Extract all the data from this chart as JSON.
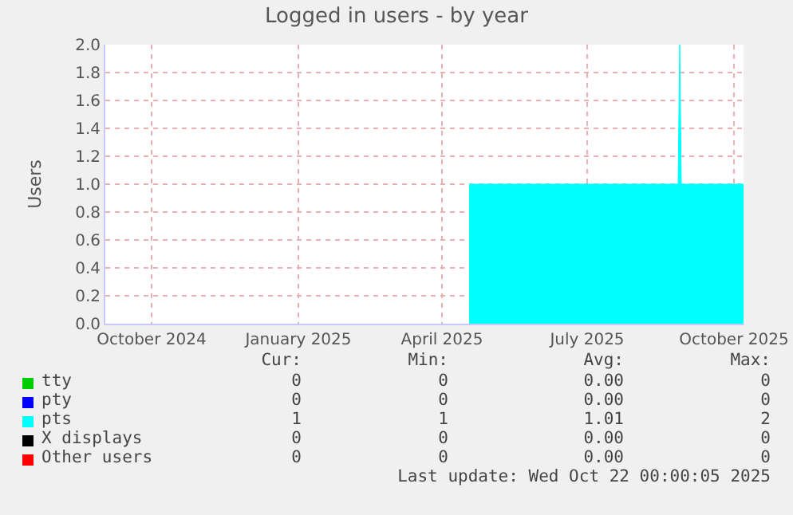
{
  "chart_data": {
    "type": "area",
    "title": "Logged in users - by year",
    "ylabel": "Users",
    "x": [
      "2025-05-03",
      "2025-09-11",
      "2025-09-12",
      "2025-09-13",
      "2025-10-22"
    ],
    "series": [
      {
        "name": "tty",
        "color": "#00cc00",
        "values": [
          null,
          null,
          null,
          null,
          null
        ]
      },
      {
        "name": "pty",
        "color": "#0000ff",
        "values": [
          null,
          null,
          null,
          null,
          null
        ]
      },
      {
        "name": "pts",
        "color": "#00ffff",
        "values": [
          1,
          1,
          2,
          1,
          1
        ]
      },
      {
        "name": "X displays",
        "color": "#000000",
        "values": [
          null,
          null,
          null,
          null,
          null
        ]
      },
      {
        "name": "Other users",
        "color": "#ff0000",
        "values": [
          null,
          null,
          null,
          null,
          null
        ]
      }
    ],
    "xlim": [
      "2024-09-17",
      "2025-10-22"
    ],
    "xticks": [
      {
        "value": "2024-10-16",
        "label": "October 2024"
      },
      {
        "value": "2025-01-16",
        "label": "January 2025"
      },
      {
        "value": "2025-04-16",
        "label": "April 2025"
      },
      {
        "value": "2025-07-16",
        "label": "July 2025"
      },
      {
        "value": "2025-10-16",
        "label": "October 2025"
      }
    ],
    "ylim": [
      0,
      2
    ],
    "yticks": [
      {
        "value": 0,
        "label": "0.0"
      },
      {
        "value": 0.2,
        "label": "0.2"
      },
      {
        "value": 0.4,
        "label": "0.4"
      },
      {
        "value": 0.6,
        "label": "0.6"
      },
      {
        "value": 0.8,
        "label": "0.8"
      },
      {
        "value": 1,
        "label": "1.0"
      },
      {
        "value": 1.2,
        "label": "1.2"
      },
      {
        "value": 1.4,
        "label": "1.4"
      },
      {
        "value": 1.6,
        "label": "1.6"
      },
      {
        "value": 1.8,
        "label": "1.8"
      },
      {
        "value": 2,
        "label": "2.0"
      }
    ],
    "grid": true,
    "legend": "bottom",
    "annotations": [
      "Cur:",
      "Min:",
      "Avg:",
      "Max:",
      "0",
      "0",
      "0.00",
      "0",
      "0",
      "0",
      "0.00",
      "0",
      "1",
      "1",
      "1.01",
      "2",
      "0",
      "0",
      "0.00",
      "0",
      "0",
      "0",
      "0.00",
      "0",
      "Last update: Wed Oct 22 00:00:05 2025"
    ]
  }
}
